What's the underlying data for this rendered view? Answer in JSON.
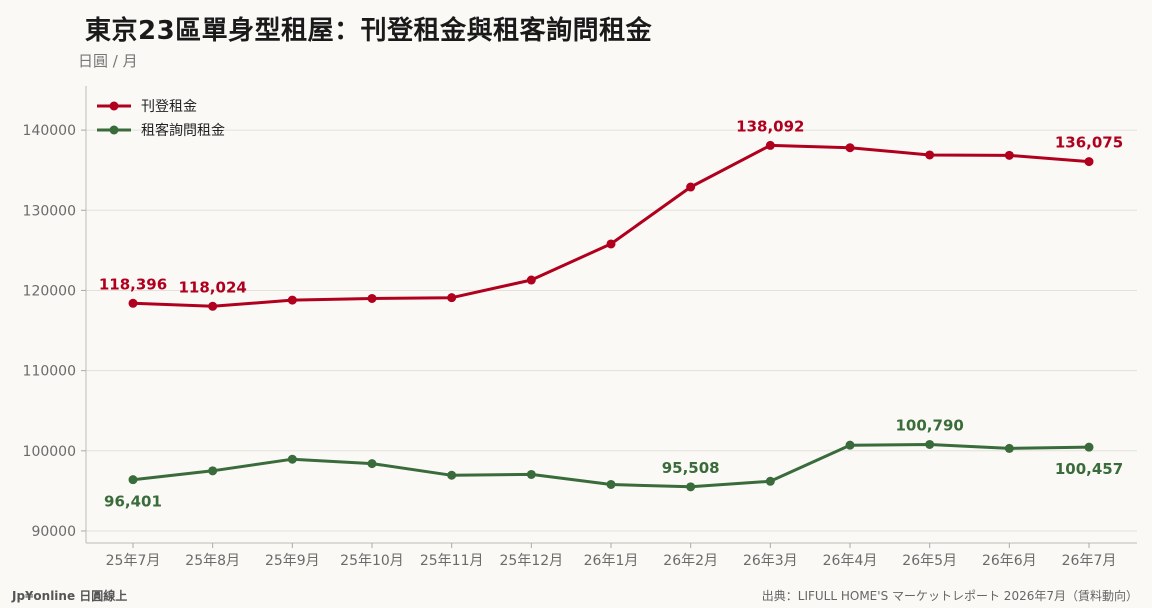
{
  "title": "東京23區單身型租屋：刊登租金與租客詢問租金",
  "unit": "日圓 / 月",
  "footer": {
    "left": "Jp¥online 日圓線上",
    "right": "出典：LIFULL HOME'S マーケットレポート 2026年7月（賃料動向）"
  },
  "chart_data": {
    "type": "line",
    "categories": [
      "25年7月",
      "25年8月",
      "25年9月",
      "25年10月",
      "25年11月",
      "25年12月",
      "26年1月",
      "26年2月",
      "26年3月",
      "26年4月",
      "26年5月",
      "26年6月",
      "26年7月"
    ],
    "series": [
      {
        "name": "刊登租金",
        "color": "#b0001e",
        "values": [
          118396,
          118024,
          118800,
          119000,
          119100,
          121300,
          125800,
          132900,
          138092,
          137800,
          136900,
          136850,
          136075
        ]
      },
      {
        "name": "租客詢問租金",
        "color": "#3a6b3a",
        "values": [
          96401,
          97500,
          98950,
          98400,
          96950,
          97050,
          95800,
          95508,
          96200,
          100700,
          100790,
          100300,
          100457
        ]
      }
    ],
    "annotations": [
      {
        "series": 0,
        "index": 0,
        "text": "118,396",
        "pos": "above"
      },
      {
        "series": 0,
        "index": 1,
        "text": "118,024",
        "pos": "above"
      },
      {
        "series": 0,
        "index": 8,
        "text": "138,092",
        "pos": "above"
      },
      {
        "series": 0,
        "index": 12,
        "text": "136,075",
        "pos": "above"
      },
      {
        "series": 1,
        "index": 0,
        "text": "96,401",
        "pos": "below"
      },
      {
        "series": 1,
        "index": 7,
        "text": "95,508",
        "pos": "above"
      },
      {
        "series": 1,
        "index": 10,
        "text": "100,790",
        "pos": "above"
      },
      {
        "series": 1,
        "index": 12,
        "text": "100,457",
        "pos": "below"
      }
    ],
    "yticks": [
      90000,
      100000,
      110000,
      120000,
      130000,
      140000
    ],
    "ylim": [
      88500,
      145500
    ],
    "grid": true,
    "legend": "top-left"
  }
}
